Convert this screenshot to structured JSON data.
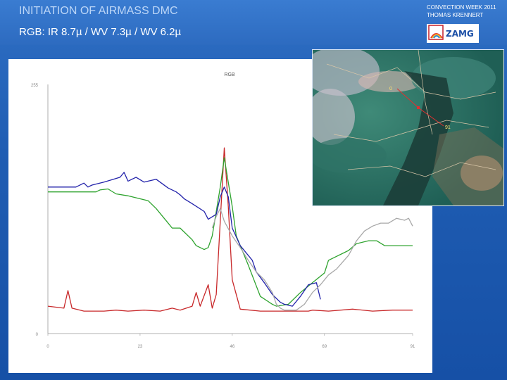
{
  "header": {
    "title": "INITIATION OF AIRMASS DMC",
    "subtitle": "RGB: IR 8.7µ / WV 7.3µ / WV 6.2µ",
    "credit_line1": "CONVECTION WEEK 2011",
    "credit_line2": "THOMAS KRENNERT",
    "logo_text": "ZAMG"
  },
  "satellite": {
    "label_a": "0",
    "label_b": "91"
  },
  "chart_data": {
    "type": "line",
    "title": "RGB",
    "xlabel": "",
    "ylabel": "",
    "xlim": [
      0,
      91
    ],
    "ylim": [
      0,
      255
    ],
    "x_ticks": [
      "0",
      "23",
      "46",
      "69",
      "91"
    ],
    "y_ticks": [
      "255",
      "0"
    ],
    "grid": false,
    "series": [
      {
        "color": "#c8282a",
        "points": [
          [
            0,
            28
          ],
          [
            4,
            26
          ],
          [
            5,
            44
          ],
          [
            6,
            26
          ],
          [
            9,
            23
          ],
          [
            14,
            23
          ],
          [
            17,
            24
          ],
          [
            20,
            23
          ],
          [
            24,
            24
          ],
          [
            28,
            23
          ],
          [
            31,
            26
          ],
          [
            33,
            24
          ],
          [
            36,
            28
          ],
          [
            37,
            42
          ],
          [
            38,
            28
          ],
          [
            40,
            50
          ],
          [
            41,
            26
          ],
          [
            42,
            40
          ],
          [
            44,
            190
          ],
          [
            45,
            130
          ],
          [
            46,
            55
          ],
          [
            48,
            25
          ],
          [
            53,
            23
          ],
          [
            61,
            23
          ],
          [
            65,
            23
          ],
          [
            66,
            24
          ],
          [
            70,
            23
          ],
          [
            76,
            25
          ],
          [
            81,
            23
          ],
          [
            86,
            24
          ],
          [
            91,
            24
          ]
        ]
      },
      {
        "color": "#2ea32e",
        "points": [
          [
            0,
            145
          ],
          [
            12,
            145
          ],
          [
            13,
            147
          ],
          [
            15,
            148
          ],
          [
            17,
            143
          ],
          [
            20,
            141
          ],
          [
            25,
            136
          ],
          [
            27,
            128
          ],
          [
            30,
            113
          ],
          [
            31,
            108
          ],
          [
            33,
            108
          ],
          [
            34,
            104
          ],
          [
            36,
            96
          ],
          [
            37,
            90
          ],
          [
            39,
            86
          ],
          [
            40,
            88
          ],
          [
            41,
            100
          ],
          [
            43,
            150
          ],
          [
            44,
            180
          ],
          [
            46,
            130
          ],
          [
            47,
            100
          ],
          [
            50,
            70
          ],
          [
            53,
            38
          ],
          [
            56,
            30
          ],
          [
            57,
            28
          ],
          [
            60,
            30
          ],
          [
            63,
            42
          ],
          [
            66,
            52
          ],
          [
            69,
            62
          ],
          [
            70,
            75
          ],
          [
            75,
            85
          ],
          [
            77,
            92
          ],
          [
            80,
            95
          ],
          [
            82,
            95
          ],
          [
            84,
            90
          ],
          [
            91,
            90
          ]
        ]
      },
      {
        "color": "#2222aa",
        "points": [
          [
            0,
            150
          ],
          [
            7,
            150
          ],
          [
            9,
            154
          ],
          [
            10,
            150
          ],
          [
            11,
            152
          ],
          [
            14,
            155
          ],
          [
            18,
            160
          ],
          [
            19,
            165
          ],
          [
            20,
            156
          ],
          [
            22,
            160
          ],
          [
            24,
            155
          ],
          [
            27,
            158
          ],
          [
            30,
            149
          ],
          [
            32,
            145
          ],
          [
            33,
            142
          ],
          [
            34,
            138
          ],
          [
            36,
            133
          ],
          [
            39,
            125
          ],
          [
            40,
            117
          ],
          [
            42,
            122
          ],
          [
            43,
            140
          ],
          [
            44,
            150
          ],
          [
            45,
            140
          ],
          [
            46,
            108
          ],
          [
            48,
            90
          ],
          [
            51,
            75
          ],
          [
            52,
            63
          ],
          [
            54,
            52
          ],
          [
            56,
            40
          ],
          [
            58,
            32
          ],
          [
            59,
            30
          ],
          [
            61,
            28
          ],
          [
            63,
            38
          ],
          [
            65,
            50
          ],
          [
            67,
            52
          ],
          [
            68,
            35
          ]
        ]
      },
      {
        "color": "#a8a8a8",
        "points": [
          [
            41,
            108
          ],
          [
            42,
            120
          ],
          [
            43,
            128
          ],
          [
            44,
            115
          ],
          [
            46,
            100
          ],
          [
            48,
            88
          ],
          [
            50,
            75
          ],
          [
            52,
            63
          ],
          [
            54,
            55
          ],
          [
            56,
            42
          ],
          [
            57,
            30
          ],
          [
            58,
            26
          ],
          [
            59,
            24
          ],
          [
            62,
            24
          ],
          [
            64,
            30
          ],
          [
            66,
            42
          ],
          [
            68,
            50
          ],
          [
            70,
            60
          ],
          [
            72,
            66
          ],
          [
            75,
            80
          ],
          [
            77,
            95
          ],
          [
            79,
            105
          ],
          [
            81,
            110
          ],
          [
            83,
            113
          ],
          [
            85,
            113
          ],
          [
            87,
            118
          ],
          [
            89,
            116
          ],
          [
            90,
            118
          ],
          [
            91,
            110
          ]
        ]
      }
    ]
  }
}
